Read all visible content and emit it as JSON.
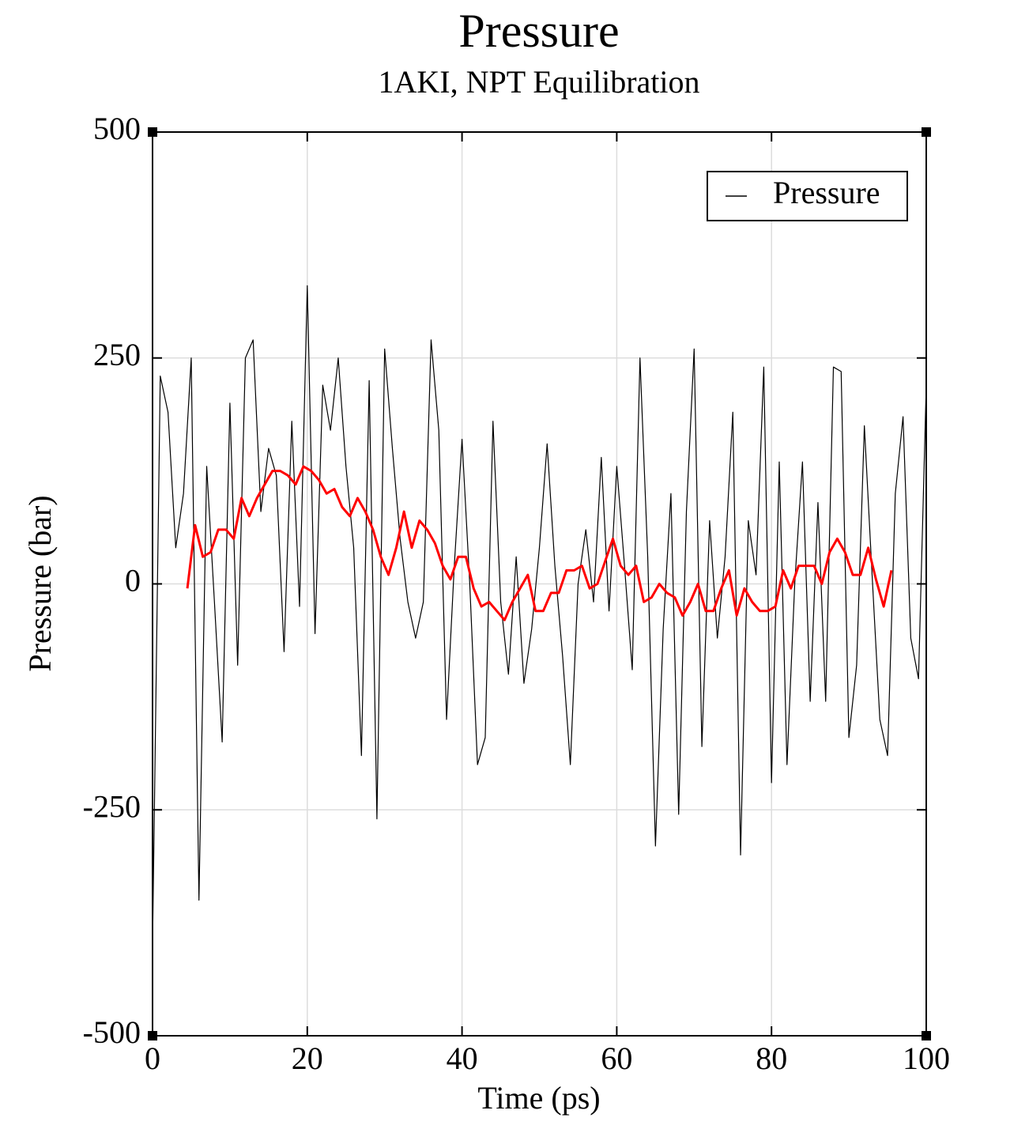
{
  "chart_data": {
    "type": "line",
    "title": "Pressure",
    "subtitle": "1AKI, NPT Equilibration",
    "x_label": "Time (ps)",
    "y_label": "Pressure (bar)",
    "xlim": [
      0,
      100
    ],
    "xticks": [
      0,
      20,
      40,
      60,
      80,
      100
    ],
    "ylim": [
      -500,
      500
    ],
    "yticks": [
      -500,
      -250,
      0,
      250,
      500
    ],
    "grid": true,
    "legend": "top-right",
    "series": [
      {
        "name": "Pressure",
        "color": "#000000",
        "x": [
          0,
          1,
          2,
          3,
          4,
          5,
          6,
          7,
          8,
          9,
          10,
          11,
          12,
          13,
          14,
          15,
          16,
          17,
          18,
          19,
          20,
          21,
          22,
          23,
          24,
          25,
          26,
          27,
          28,
          29,
          30,
          31,
          32,
          33,
          34,
          35,
          36,
          37,
          38,
          39,
          40,
          41,
          42,
          43,
          44,
          45,
          46,
          47,
          48,
          49,
          50,
          51,
          52,
          53,
          54,
          55,
          56,
          57,
          58,
          59,
          60,
          61,
          62,
          63,
          64,
          65,
          66,
          67,
          68,
          69,
          70,
          71,
          72,
          73,
          74,
          75,
          76,
          77,
          78,
          79,
          80,
          81,
          82,
          83,
          84,
          85,
          86,
          87,
          88,
          89,
          90,
          91,
          92,
          93,
          94,
          95,
          96,
          97,
          98,
          99,
          100
        ],
        "values": [
          -400,
          230,
          190,
          40,
          100,
          250,
          -350,
          130,
          -20,
          -175,
          200,
          -90,
          250,
          270,
          80,
          150,
          120,
          -75,
          180,
          -25,
          330,
          -55,
          220,
          170,
          250,
          130,
          40,
          -190,
          225,
          -260,
          260,
          150,
          50,
          -20,
          -60,
          -20,
          270,
          170,
          -150,
          20,
          160,
          0,
          -200,
          -170,
          180,
          -20,
          -100,
          30,
          -110,
          -50,
          40,
          155,
          20,
          -80,
          -200,
          0,
          60,
          -20,
          140,
          -30,
          130,
          20,
          -95,
          250,
          30,
          -290,
          -50,
          100,
          -255,
          80,
          260,
          -180,
          70,
          -60,
          30,
          190,
          -300,
          70,
          10,
          240,
          -220,
          135,
          -200,
          0,
          135,
          -130,
          90,
          -130,
          240,
          235,
          -170,
          -90,
          175,
          10,
          -150,
          -190,
          100,
          185,
          -60,
          -105,
          220
        ]
      },
      {
        "color": "#ff0000",
        "x": [
          4.5,
          5.5,
          6.5,
          7.5,
          8.5,
          9.5,
          10.5,
          11.5,
          12.5,
          13.5,
          14.5,
          15.5,
          16.5,
          17.5,
          18.5,
          19.5,
          20.5,
          21.5,
          22.5,
          23.5,
          24.5,
          25.5,
          26.5,
          27.5,
          28.5,
          29.5,
          30.5,
          31.5,
          32.5,
          33.5,
          34.5,
          35.5,
          36.5,
          37.5,
          38.5,
          39.5,
          40.5,
          41.5,
          42.5,
          43.5,
          44.5,
          45.5,
          46.5,
          47.5,
          48.5,
          49.5,
          50.5,
          51.5,
          52.5,
          53.5,
          54.5,
          55.5,
          56.5,
          57.5,
          58.5,
          59.5,
          60.5,
          61.5,
          62.5,
          63.5,
          64.5,
          65.5,
          66.5,
          67.5,
          68.5,
          69.5,
          70.5,
          71.5,
          72.5,
          73.5,
          74.5,
          75.5,
          76.5,
          77.5,
          78.5,
          79.5,
          80.5,
          81.5,
          82.5,
          83.5,
          84.5,
          85.5,
          86.5,
          87.5,
          88.5,
          89.5,
          90.5,
          91.5,
          92.5,
          93.5,
          94.5,
          95.5
        ],
        "values": [
          -5,
          65,
          30,
          35,
          60,
          60,
          50,
          95,
          75,
          95,
          110,
          125,
          125,
          120,
          110,
          130,
          125,
          115,
          100,
          105,
          85,
          75,
          95,
          80,
          60,
          30,
          10,
          40,
          80,
          40,
          70,
          60,
          45,
          20,
          5,
          30,
          30,
          -5,
          -25,
          -20,
          -30,
          -40,
          -20,
          -5,
          10,
          -30,
          -30,
          -10,
          -10,
          15,
          15,
          20,
          -5,
          0,
          25,
          50,
          20,
          10,
          20,
          -20,
          -15,
          0,
          -10,
          -15,
          -35,
          -20,
          0,
          -30,
          -30,
          -5,
          15,
          -35,
          -5,
          -20,
          -30,
          -30,
          -25,
          15,
          -5,
          20,
          20,
          20,
          0,
          35,
          50,
          35,
          10,
          10,
          40,
          5,
          -25,
          15
        ]
      }
    ]
  }
}
